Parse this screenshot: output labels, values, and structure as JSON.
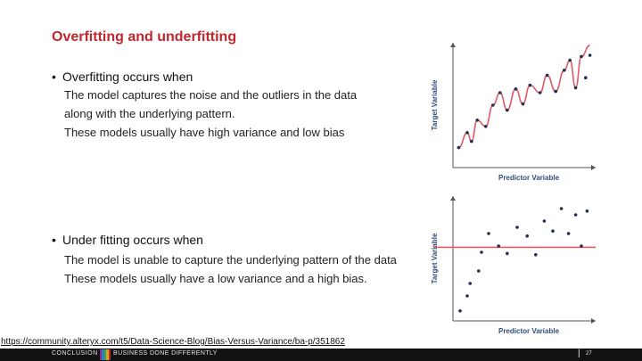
{
  "slide": {
    "title": "Overfitting and underfitting",
    "overfit": {
      "heading": "Overfitting occurs when",
      "lines": [
        "The model captures the noise and the outliers in the data",
        "along with the underlying pattern.",
        "These models usually have high variance and low bias"
      ]
    },
    "underfit": {
      "heading": "Under fitting occurs when",
      "lines": [
        "The model is unable to capture the underlying pattern of the data",
        "These models usually have a low variance and a high bias."
      ]
    },
    "link": "https://community.alteryx.com/t5/Data-Science-Blog/Bias-Versus-Variance/ba-p/351862"
  },
  "footer": {
    "brand": "CONCLUSION",
    "tagline": "BUSINESS DONE DIFFERENTLY",
    "separator": "|",
    "page_number": "27",
    "stripe_colors": [
      "#8e2a8a",
      "#2d7fc1",
      "#3aa655",
      "#d9a21b",
      "#c0272d"
    ]
  },
  "colors": {
    "title": "#c0272d",
    "curve": "#e05a6a",
    "point": "#1f2f4f",
    "axis_text": "#2f4f7a"
  },
  "chart_data": [
    {
      "type": "scatter",
      "xlabel": "Predictor Variable",
      "ylabel": "Target Variable",
      "xlim": [
        0,
        10
      ],
      "ylim": [
        0,
        10
      ],
      "points": [
        {
          "x": 0.4,
          "y": 1.6
        },
        {
          "x": 1.0,
          "y": 2.8
        },
        {
          "x": 1.3,
          "y": 2.1
        },
        {
          "x": 1.7,
          "y": 3.8
        },
        {
          "x": 2.3,
          "y": 3.3
        },
        {
          "x": 2.8,
          "y": 5.0
        },
        {
          "x": 3.3,
          "y": 6.0
        },
        {
          "x": 3.8,
          "y": 4.6
        },
        {
          "x": 4.4,
          "y": 6.3
        },
        {
          "x": 4.9,
          "y": 5.1
        },
        {
          "x": 5.4,
          "y": 6.6
        },
        {
          "x": 6.1,
          "y": 6.0
        },
        {
          "x": 6.6,
          "y": 7.4
        },
        {
          "x": 7.2,
          "y": 6.1
        },
        {
          "x": 7.8,
          "y": 7.8
        },
        {
          "x": 8.2,
          "y": 8.6
        },
        {
          "x": 8.6,
          "y": 6.4
        },
        {
          "x": 9.0,
          "y": 8.9
        },
        {
          "x": 9.3,
          "y": 7.2
        },
        {
          "x": 9.6,
          "y": 9.0
        }
      ],
      "fit": {
        "kind": "overfit",
        "x": [
          0.4,
          1.0,
          1.3,
          1.7,
          2.3,
          2.8,
          3.3,
          3.8,
          4.4,
          4.9,
          5.4,
          6.1,
          6.6,
          7.2,
          7.8,
          8.2,
          8.6,
          9.0,
          9.6
        ],
        "y": [
          1.6,
          2.8,
          2.1,
          3.8,
          3.3,
          5.0,
          6.0,
          4.6,
          6.3,
          5.1,
          6.6,
          6.0,
          7.4,
          6.1,
          7.8,
          8.6,
          6.4,
          8.9,
          9.8
        ]
      }
    },
    {
      "type": "scatter",
      "xlabel": "Predictor Variable",
      "ylabel": "Target Variable",
      "xlim": [
        0,
        10
      ],
      "ylim": [
        0,
        10
      ],
      "points": [
        {
          "x": 0.5,
          "y": 0.8
        },
        {
          "x": 1.0,
          "y": 2.0
        },
        {
          "x": 1.2,
          "y": 3.0
        },
        {
          "x": 1.8,
          "y": 4.0
        },
        {
          "x": 2.0,
          "y": 5.5
        },
        {
          "x": 2.5,
          "y": 7.0
        },
        {
          "x": 3.2,
          "y": 6.0
        },
        {
          "x": 3.8,
          "y": 5.4
        },
        {
          "x": 4.5,
          "y": 7.5
        },
        {
          "x": 5.2,
          "y": 6.8
        },
        {
          "x": 5.8,
          "y": 5.3
        },
        {
          "x": 6.4,
          "y": 8.0
        },
        {
          "x": 7.0,
          "y": 7.2
        },
        {
          "x": 7.6,
          "y": 9.0
        },
        {
          "x": 8.1,
          "y": 7.0
        },
        {
          "x": 8.6,
          "y": 8.5
        },
        {
          "x": 9.0,
          "y": 6.0
        },
        {
          "x": 9.4,
          "y": 8.8
        }
      ],
      "fit": {
        "kind": "underfit",
        "x": [
          0,
          10
        ],
        "y": [
          5.9,
          5.9
        ]
      }
    }
  ]
}
